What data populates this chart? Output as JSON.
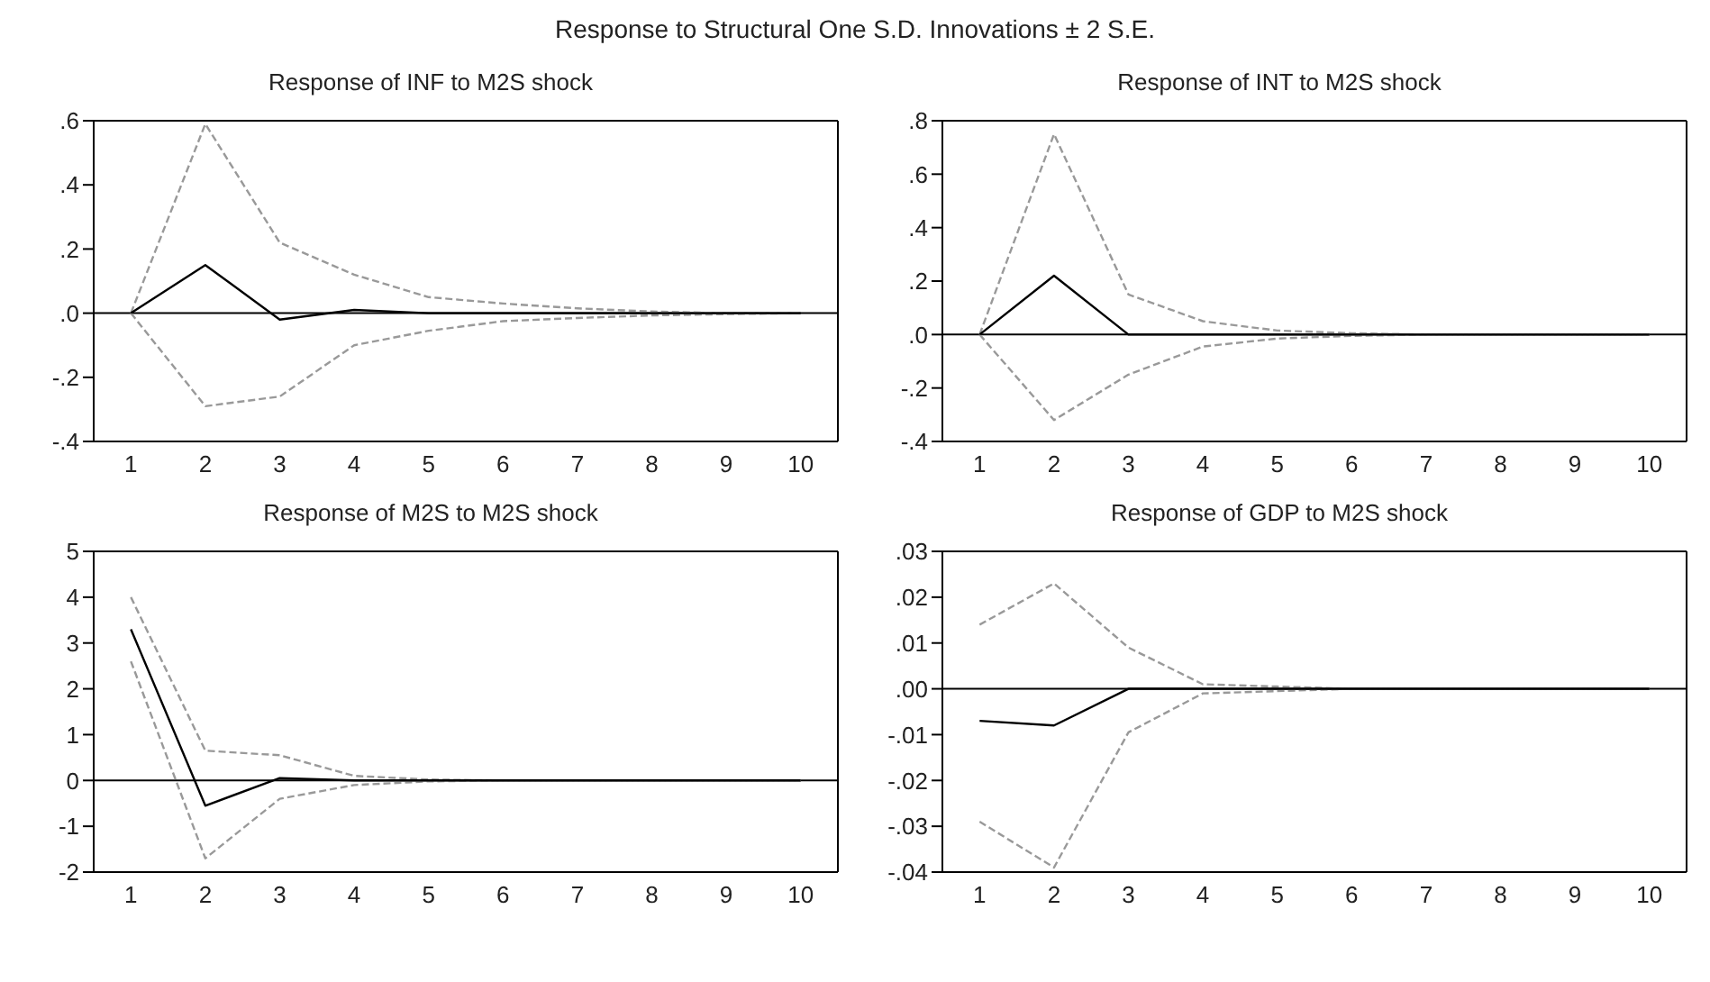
{
  "chart_data": [
    {
      "type": "line",
      "title": "Response  of INF to M2S shock",
      "annotations": [
        "Response  to Structural One S.D. Innovations ± 2 S.E."
      ],
      "categories": [
        "1",
        "2",
        "3",
        "4",
        "5",
        "6",
        "7",
        "8",
        "9",
        "10"
      ],
      "marker": "none",
      "legend": false,
      "grid": false,
      "ylim": [
        -0.4,
        0.6
      ],
      "yticks": [
        {
          "value": -0.4,
          "label": "-.4"
        },
        {
          "value": -0.2,
          "label": "-.2"
        },
        {
          "value": 0,
          "label": ".0"
        },
        {
          "value": 0.2,
          "label": ".2"
        },
        {
          "value": 0.4,
          "label": ".4"
        },
        {
          "value": 0.6,
          "label": ".6"
        }
      ],
      "ref_lines": [
        {
          "axis": "y",
          "value": 0,
          "color": "#000000"
        }
      ],
      "series": [
        {
          "color": "#999999",
          "line_style": "dashed",
          "values": [
            0,
            0.59,
            0.22,
            0.12,
            0.05,
            0.03,
            0.015,
            0.005,
            0,
            0
          ]
        },
        {
          "color": "#999999",
          "line_style": "dashed",
          "values": [
            0,
            -0.29,
            -0.26,
            -0.1,
            -0.055,
            -0.025,
            -0.015,
            -0.007,
            -0.003,
            0
          ]
        },
        {
          "color": "#000000",
          "line_style": "solid",
          "values": [
            0,
            0.15,
            -0.02,
            0.01,
            0,
            0,
            0,
            0,
            0,
            0
          ]
        }
      ]
    },
    {
      "type": "line",
      "title": "Response  of INT to M2S shock",
      "categories": [
        "1",
        "2",
        "3",
        "4",
        "5",
        "6",
        "7",
        "8",
        "9",
        "10"
      ],
      "marker": "none",
      "legend": false,
      "grid": false,
      "ylim": [
        -0.4,
        0.8
      ],
      "yticks": [
        {
          "value": -0.4,
          "label": "-.4"
        },
        {
          "value": -0.2,
          "label": "-.2"
        },
        {
          "value": 0,
          "label": ".0"
        },
        {
          "value": 0.2,
          "label": ".2"
        },
        {
          "value": 0.4,
          "label": ".4"
        },
        {
          "value": 0.6,
          "label": ".6"
        },
        {
          "value": 0.8,
          "label": ".8"
        }
      ],
      "ref_lines": [
        {
          "axis": "y",
          "value": 0,
          "color": "#000000"
        }
      ],
      "series": [
        {
          "color": "#999999",
          "line_style": "dashed",
          "values": [
            0,
            0.75,
            0.15,
            0.05,
            0.015,
            0.005,
            0,
            0,
            0,
            0
          ]
        },
        {
          "color": "#999999",
          "line_style": "dashed",
          "values": [
            0,
            -0.32,
            -0.15,
            -0.045,
            -0.015,
            -0.005,
            0,
            0,
            0,
            0
          ]
        },
        {
          "color": "#000000",
          "line_style": "solid",
          "values": [
            0,
            0.22,
            0,
            0,
            0,
            0,
            0,
            0,
            0,
            0
          ]
        }
      ]
    },
    {
      "type": "line",
      "title": "Response  of M2S to M2S shock",
      "categories": [
        "1",
        "2",
        "3",
        "4",
        "5",
        "6",
        "7",
        "8",
        "9",
        "10"
      ],
      "marker": "none",
      "legend": false,
      "grid": false,
      "ylim": [
        -2,
        5
      ],
      "yticks": [
        -2,
        -1,
        0,
        1,
        2,
        3,
        4,
        5
      ],
      "ref_lines": [
        {
          "axis": "y",
          "value": 0,
          "color": "#000000"
        }
      ],
      "series": [
        {
          "color": "#999999",
          "line_style": "dashed",
          "values": [
            4.0,
            0.65,
            0.55,
            0.1,
            0.02,
            0,
            0,
            0,
            0,
            0
          ]
        },
        {
          "color": "#999999",
          "line_style": "dashed",
          "values": [
            2.6,
            -1.7,
            -0.4,
            -0.1,
            -0.02,
            0,
            0,
            0,
            0,
            0
          ]
        },
        {
          "color": "#000000",
          "line_style": "solid",
          "values": [
            3.3,
            -0.55,
            0.05,
            0,
            0,
            0,
            0,
            0,
            0,
            0
          ]
        }
      ]
    },
    {
      "type": "line",
      "title": "Response  of GDP to M2S shock",
      "categories": [
        "1",
        "2",
        "3",
        "4",
        "5",
        "6",
        "7",
        "8",
        "9",
        "10"
      ],
      "marker": "none",
      "legend": false,
      "grid": false,
      "ylim": [
        -0.04,
        0.03
      ],
      "yticks": [
        {
          "value": -0.04,
          "label": "-.04"
        },
        {
          "value": -0.03,
          "label": "-.03"
        },
        {
          "value": -0.02,
          "label": "-.02"
        },
        {
          "value": -0.01,
          "label": "-.01"
        },
        {
          "value": 0,
          "label": ".00"
        },
        {
          "value": 0.01,
          "label": ".01"
        },
        {
          "value": 0.02,
          "label": ".02"
        },
        {
          "value": 0.03,
          "label": ".03"
        }
      ],
      "ref_lines": [
        {
          "axis": "y",
          "value": 0,
          "color": "#000000"
        }
      ],
      "series": [
        {
          "color": "#999999",
          "line_style": "dashed",
          "values": [
            0.014,
            0.023,
            0.009,
            0.001,
            0.0005,
            0,
            0,
            0,
            0,
            0
          ]
        },
        {
          "color": "#999999",
          "line_style": "dashed",
          "values": [
            -0.029,
            -0.039,
            -0.0095,
            -0.001,
            -0.0005,
            0,
            0,
            0,
            0,
            0
          ]
        },
        {
          "color": "#000000",
          "line_style": "solid",
          "values": [
            -0.007,
            -0.008,
            0,
            0,
            0,
            0,
            0,
            0,
            0,
            0
          ]
        }
      ]
    }
  ]
}
